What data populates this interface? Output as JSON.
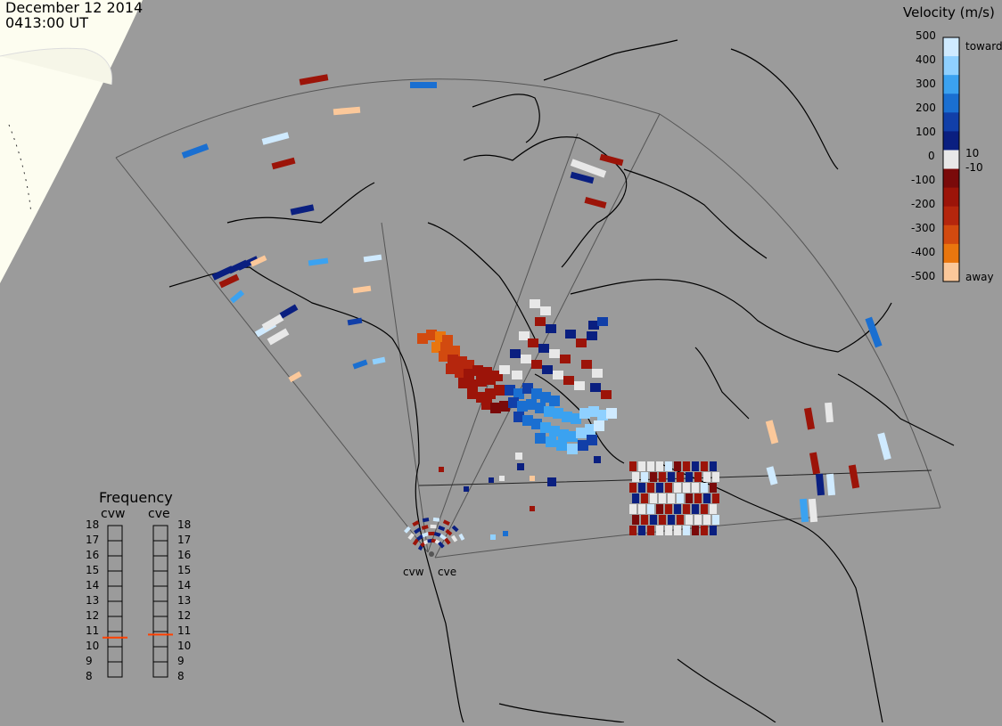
{
  "header": {
    "date": "December 12 2014",
    "time": "0413:00 UT"
  },
  "velocity_scale": {
    "title": "Velocity (m/s)",
    "top_label": "toward",
    "bottom_label": "away",
    "ticks": [
      "500",
      "400",
      "300",
      "200",
      "100",
      "10",
      "0",
      "-10",
      "-100",
      "-200",
      "-300",
      "-400",
      "-500"
    ],
    "colors": [
      "#cfeaff",
      "#8fd0ff",
      "#3ba2f0",
      "#1a6fd1",
      "#113fa8",
      "#0a1f80",
      "#e8e8e8",
      "#7a0a0a",
      "#9c1409",
      "#b5260d",
      "#d24a0f",
      "#e9760e",
      "#fbc89a"
    ]
  },
  "frequency_panel": {
    "title": "Frequency",
    "columns": [
      "cvw",
      "cve"
    ],
    "ticks": [
      "18",
      "17",
      "16",
      "15",
      "14",
      "13",
      "12",
      "11",
      "10",
      "9",
      "8"
    ],
    "cvw_value_mhz": 10.6,
    "cve_value_mhz": 10.8,
    "marker_color": "#ff4000"
  },
  "radar_sites": {
    "west": "cvw",
    "east": "cve"
  }
}
